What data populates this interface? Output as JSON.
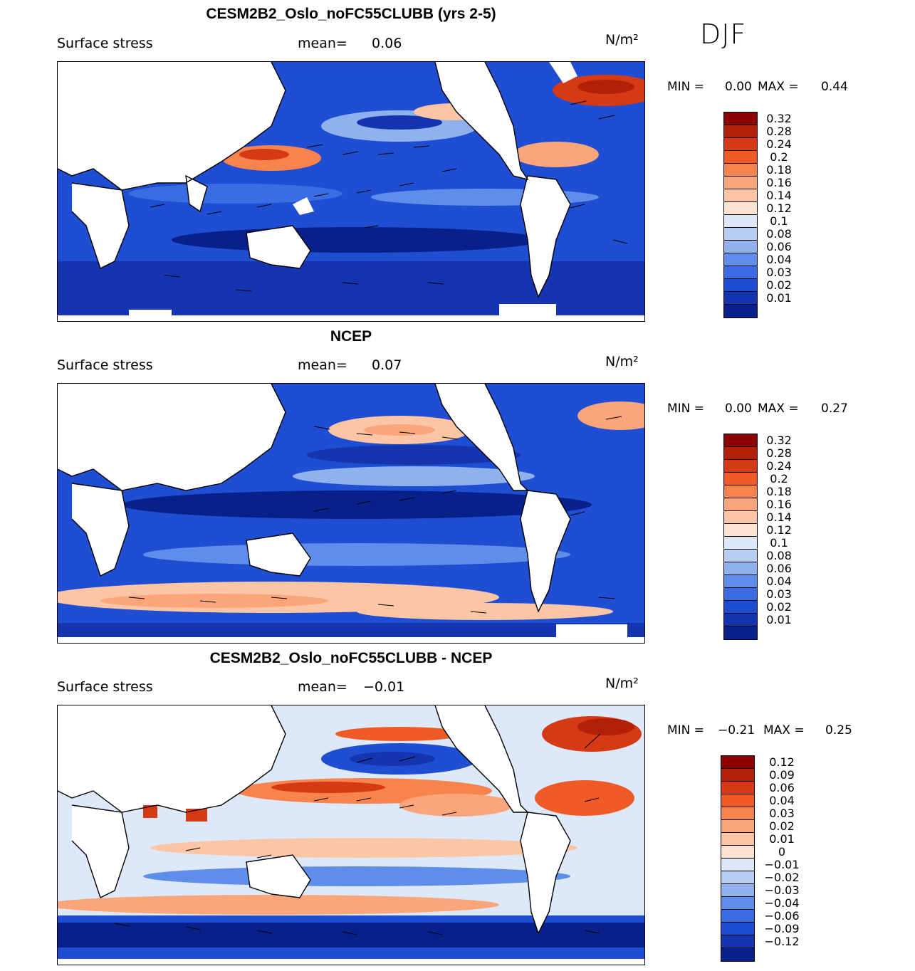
{
  "season": "DJF",
  "panels": [
    {
      "title": "CESM2B2_Oslo_noFC55CLUBB (yrs 2-5)",
      "variable": "Surface stress",
      "mean_label": "mean=",
      "mean_value": "0.06",
      "units": "N/m²",
      "min_label": "MIN =",
      "min_value": "0.00",
      "max_label": "MAX =",
      "max_value": "0.44",
      "legend_labels": [
        "0.32",
        "0.28",
        "0.24",
        "0.2",
        "0.18",
        "0.16",
        "0.14",
        "0.12",
        "0.1",
        "0.08",
        "0.06",
        "0.04",
        "0.03",
        "0.02",
        "0.01"
      ],
      "legend_colors": [
        "#8b0000",
        "#b32008",
        "#d63a14",
        "#f05a26",
        "#f7844d",
        "#fba57a",
        "#fcc6a6",
        "#fde4d2",
        "#dde9f8",
        "#b7cff4",
        "#8fb2ef",
        "#5e8eea",
        "#3a6de4",
        "#1f4ed2",
        "#1434b0",
        "#08208a"
      ]
    },
    {
      "title": "NCEP",
      "variable": "Surface stress",
      "mean_label": "mean=",
      "mean_value": "0.07",
      "units": "N/m²",
      "min_label": "MIN =",
      "min_value": "0.00",
      "max_label": "MAX =",
      "max_value": "0.27",
      "legend_labels": [
        "0.32",
        "0.28",
        "0.24",
        "0.2",
        "0.18",
        "0.16",
        "0.14",
        "0.12",
        "0.1",
        "0.08",
        "0.06",
        "0.04",
        "0.03",
        "0.02",
        "0.01"
      ],
      "legend_colors": [
        "#8b0000",
        "#b32008",
        "#d63a14",
        "#f05a26",
        "#f7844d",
        "#fba57a",
        "#fcc6a6",
        "#fde4d2",
        "#dde9f8",
        "#b7cff4",
        "#8fb2ef",
        "#5e8eea",
        "#3a6de4",
        "#1f4ed2",
        "#1434b0",
        "#08208a"
      ]
    },
    {
      "title": "CESM2B2_Oslo_noFC55CLUBB - NCEP",
      "variable": "Surface stress",
      "mean_label": "mean=",
      "mean_value": "−0.01",
      "units": "N/m²",
      "min_label": "MIN =",
      "min_value": "−0.21",
      "max_label": "MAX =",
      "max_value": "0.25",
      "legend_labels": [
        "0.12",
        "0.09",
        "0.06",
        "0.04",
        "0.03",
        "0.02",
        "0.01",
        "0",
        "−0.01",
        "−0.02",
        "−0.03",
        "−0.04",
        "−0.06",
        "−0.09",
        "−0.12"
      ],
      "legend_colors": [
        "#8b0000",
        "#b32008",
        "#d63a14",
        "#f05a26",
        "#f7844d",
        "#fba57a",
        "#fcc6a6",
        "#fde4d2",
        "#dde9f8",
        "#b7cff4",
        "#8fb2ef",
        "#5e8eea",
        "#3a6de4",
        "#1f4ed2",
        "#1434b0",
        "#08208a"
      ]
    }
  ]
}
